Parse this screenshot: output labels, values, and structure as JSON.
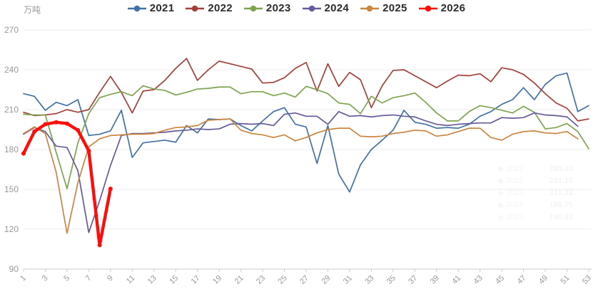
{
  "chart": {
    "y_axis_title": "万吨",
    "background": "#ffffff",
    "grid_color": "#ededf2",
    "axis_color": "#cccccc",
    "tick_label_color": "#999999",
    "legend_text_color": "#2b2b2b"
  },
  "chart_data": {
    "type": "line",
    "title": "",
    "x": [
      1,
      2,
      3,
      4,
      5,
      6,
      7,
      8,
      9,
      10,
      11,
      12,
      13,
      14,
      15,
      16,
      17,
      18,
      19,
      20,
      21,
      22,
      23,
      24,
      25,
      26,
      27,
      28,
      29,
      30,
      31,
      32,
      33,
      34,
      35,
      36,
      37,
      38,
      39,
      40,
      41,
      42,
      43,
      44,
      45,
      46,
      47,
      48,
      49,
      50,
      51,
      52,
      53
    ],
    "x_tick_labels": [
      1,
      3,
      5,
      7,
      9,
      11,
      13,
      15,
      17,
      19,
      21,
      23,
      25,
      27,
      29,
      31,
      33,
      35,
      37,
      39,
      41,
      43,
      45,
      47,
      49,
      51,
      53
    ],
    "xlabel": "",
    "ylabel": "万吨",
    "ylim": [
      90,
      270
    ],
    "y_ticks": [
      90,
      120,
      150,
      180,
      210,
      240,
      270
    ],
    "grid": true,
    "legend_position": "top",
    "series": [
      {
        "name": "2021",
        "color": "#4272a3",
        "width": 1.7,
        "markers": false,
        "values": [
          222,
          220,
          209.5,
          215.5,
          213,
          217.5,
          190.5,
          191.5,
          194,
          209.5,
          174,
          185,
          186,
          187,
          185.5,
          198,
          192.5,
          203,
          202.5,
          203,
          198,
          194,
          201.5,
          208.5,
          211.5,
          199,
          197,
          169.5,
          198,
          161.5,
          148,
          168.5,
          180,
          187,
          194.5,
          209.5,
          200.5,
          199,
          196,
          196.5,
          196,
          199,
          205,
          208.5,
          214,
          217.5,
          226.5,
          217.5,
          229,
          235.5,
          237.5,
          208.5,
          213
        ]
      },
      {
        "name": "2022",
        "color": "#a24039",
        "width": 1.7,
        "markers": false,
        "values": [
          208,
          205.5,
          206,
          207,
          210,
          208,
          210,
          223,
          235,
          223,
          207.5,
          224,
          225,
          232,
          241,
          248.5,
          232,
          240,
          246.5,
          244.5,
          242.5,
          240.5,
          230,
          230.5,
          234,
          241,
          245.5,
          224,
          244.5,
          227.5,
          238,
          232.5,
          211.5,
          228,
          239.5,
          240,
          235.5,
          231,
          226.5,
          231.5,
          236,
          235.5,
          237,
          231,
          241.5,
          240,
          236.5,
          230,
          222,
          215,
          211,
          201.5,
          203
        ]
      },
      {
        "name": "2023",
        "color": "#7ea34f",
        "width": 1.7,
        "markers": false,
        "values": [
          206.5,
          206,
          206,
          178,
          150.5,
          185,
          207,
          219,
          221.5,
          223.5,
          220.5,
          228,
          225.5,
          224.5,
          221,
          223,
          225.5,
          226,
          227,
          227,
          222,
          223.5,
          223.5,
          220.5,
          222.5,
          219.5,
          227.5,
          225,
          222,
          215,
          214,
          207,
          220,
          215,
          219,
          220.5,
          222.5,
          215.5,
          207.5,
          201.5,
          201.5,
          208.5,
          213,
          211.5,
          209.5,
          207.5,
          212.5,
          208,
          195.5,
          196.5,
          199.5,
          193.5,
          180.5
        ]
      },
      {
        "name": "2024",
        "color": "#675a9b",
        "width": 1.7,
        "markers": false,
        "values": [
          191.5,
          196.5,
          193.5,
          182.5,
          181.5,
          164,
          117.5,
          141.5,
          168,
          190.5,
          192,
          192,
          192.5,
          193,
          194,
          194.5,
          195.5,
          195,
          195.5,
          199,
          199.5,
          199,
          199.5,
          198,
          206.5,
          207.5,
          205,
          205,
          199,
          208.5,
          205,
          205.5,
          204.5,
          205.5,
          206,
          205,
          204.5,
          201.5,
          199,
          198,
          199,
          199.5,
          200,
          200,
          204,
          203.5,
          204,
          207.5,
          206,
          205.5,
          204.5,
          197.5
        ]
      },
      {
        "name": "2025",
        "color": "#cb8540",
        "width": 1.7,
        "markers": false,
        "values": [
          192,
          197,
          192,
          163,
          117,
          155,
          182,
          188,
          190.5,
          191,
          191.5,
          191.5,
          192,
          194.5,
          196.5,
          197,
          198,
          202,
          202.5,
          203,
          194.5,
          192,
          191,
          189,
          191,
          186.5,
          189,
          192.5,
          195,
          196,
          196,
          190,
          189.5,
          190,
          192,
          193,
          194.5,
          194,
          190,
          191,
          193.5,
          196,
          196,
          189,
          187,
          191.5,
          193.5,
          194,
          192.5,
          192,
          193.5,
          188
        ]
      },
      {
        "name": "2026",
        "color": "#fe0d0d",
        "width": 4.4,
        "markers": true,
        "values": [
          177,
          193.5,
          199,
          200.5,
          199.5,
          194.5,
          179,
          108,
          150.5
        ]
      }
    ]
  },
  "tooltip_ghost": {
    "note": "faded tooltip remnant",
    "rows": [
      {
        "year": "2021",
        "value": "205.23"
      },
      {
        "year": "2022",
        "value": "231.10"
      },
      {
        "year": "2023",
        "value": "211.32"
      },
      {
        "year": "2024",
        "value": "198.75"
      },
      {
        "year": "2025",
        "value": "190.92"
      }
    ]
  }
}
